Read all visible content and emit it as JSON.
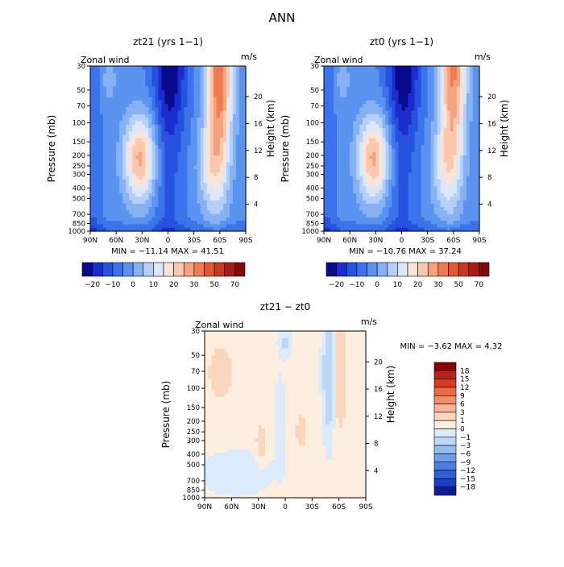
{
  "figure": {
    "title": "ANN"
  },
  "chart_data": [
    {
      "type": "heatmap",
      "title": "zt21 (yrs 1−1)",
      "left_label": "Zonal wind",
      "units": "m/s",
      "xlabel": "",
      "ylabel": "Pressure (mb)",
      "y2label": "Height (km)",
      "x_ticks": [
        "90N",
        "60N",
        "30N",
        "0",
        "30S",
        "60S",
        "90S"
      ],
      "y_ticks": [
        "30",
        "50",
        "70",
        "100",
        "150",
        "200",
        "250",
        "300",
        "400",
        "500",
        "700",
        "850",
        "1000"
      ],
      "y2_ticks": [
        "20",
        "16",
        "12",
        "8",
        "4"
      ],
      "stats": "MIN = −11.14   MAX =  41.51",
      "colorbar_labels": [
        "−20",
        "−10",
        "0",
        "10",
        "20",
        "30",
        "50",
        "70"
      ]
    },
    {
      "type": "heatmap",
      "title": "zt0 (yrs 1−1)",
      "left_label": "Zonal wind",
      "units": "m/s",
      "xlabel": "",
      "ylabel": "Pressure (mb)",
      "y2label": "Height (km)",
      "x_ticks": [
        "90N",
        "60N",
        "30N",
        "0",
        "30S",
        "60S",
        "90S"
      ],
      "y_ticks": [
        "30",
        "50",
        "70",
        "100",
        "150",
        "200",
        "250",
        "300",
        "400",
        "500",
        "700",
        "850",
        "1000"
      ],
      "y2_ticks": [
        "20",
        "16",
        "12",
        "8",
        "4"
      ],
      "stats": "MIN = −10.76   MAX =  37.24",
      "colorbar_labels": [
        "−20",
        "−10",
        "0",
        "10",
        "20",
        "30",
        "50",
        "70"
      ]
    },
    {
      "type": "heatmap",
      "title": "zt21 − zt0",
      "left_label": "Zonal wind",
      "units": "m/s",
      "xlabel": "",
      "ylabel": "Pressure (mb)",
      "y2label": "Height (km)",
      "x_ticks": [
        "90N",
        "60N",
        "30N",
        "0",
        "30S",
        "60S",
        "90S"
      ],
      "y_ticks": [
        "30",
        "50",
        "70",
        "100",
        "150",
        "200",
        "250",
        "300",
        "400",
        "500",
        "700",
        "850",
        "1000"
      ],
      "y2_ticks": [
        "20",
        "16",
        "12",
        "8",
        "4"
      ],
      "stats": "MIN =   −3.62   MAX =   4.32",
      "colorbar_labels": [
        "18",
        "15",
        "12",
        "9",
        "6",
        "3",
        "1",
        "0",
        "−1",
        "−3",
        "−6",
        "−9",
        "−12",
        "−15",
        "−18"
      ]
    }
  ],
  "colors": {
    "wind_scale": [
      "#0a0a8c",
      "#1c2dcf",
      "#2553e0",
      "#3a73ea",
      "#5a93f0",
      "#86b2f4",
      "#b4d0f8",
      "#dbe8fb",
      "#fbe3d5",
      "#f9c8ad",
      "#f4a37e",
      "#ee7c50",
      "#e05a30",
      "#c43a1e",
      "#a41e14",
      "#840a0a"
    ],
    "diff_scale": [
      "#880000",
      "#b8231a",
      "#d63c24",
      "#ee6a40",
      "#f48e66",
      "#f7b496",
      "#fad6bd",
      "#fdeee0",
      "#dcebfb",
      "#bcd6f6",
      "#97bdf0",
      "#6f9ee9",
      "#4b80e2",
      "#2f5fd8",
      "#1a3ec4",
      "#0c1d9a"
    ]
  }
}
